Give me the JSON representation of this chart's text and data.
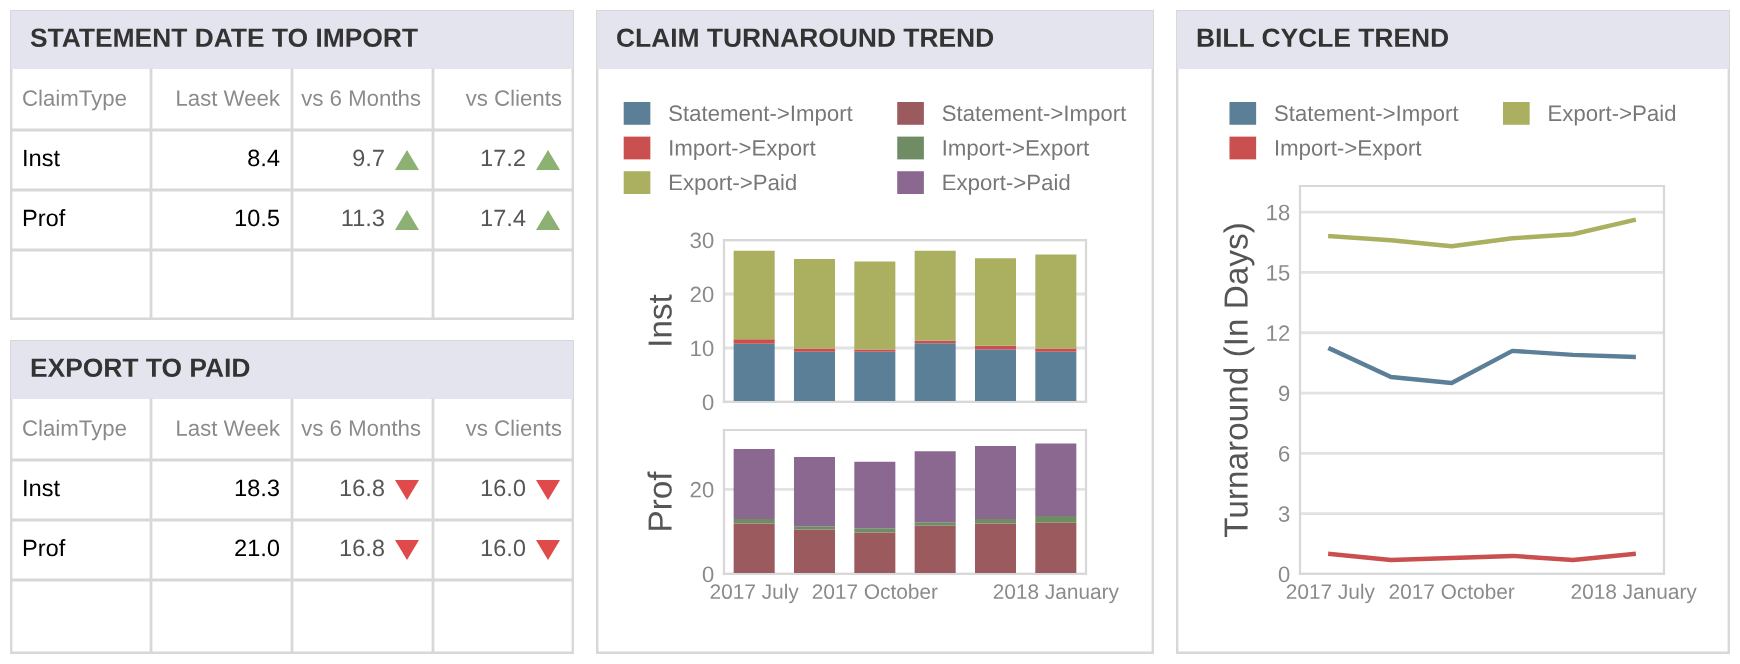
{
  "chart_data": [
    {
      "type": "other",
      "title": "STATEMENT DATE TO IMPORT",
      "categories": [
        "ClaimType",
        "Last Week",
        "vs 6 Months",
        "vs Clients"
      ],
      "annotations": [
        "Inst",
        "8.4",
        "9.7",
        "17.2",
        "Prof",
        "10.5",
        "11.3",
        "17.4"
      ],
      "colors": [
        "#8db173",
        "#8db173",
        "#8db173",
        "#8db173"
      ]
    },
    {
      "type": "other",
      "title": "EXPORT TO PAID",
      "categories": [
        "ClaimType",
        "Last Week",
        "vs 6 Months",
        "vs Clients"
      ],
      "annotations": [
        "Inst",
        "18.3",
        "16.8",
        "16.0",
        "Prof",
        "21.0",
        "16.8",
        "16.0"
      ],
      "colors": [
        "#e04a4a",
        "#e04a4a",
        "#e04a4a",
        "#e04a4a"
      ]
    },
    {
      "type": "bar",
      "title": "CLAIM TURNAROUND TREND",
      "ylabel": "Inst",
      "stacked": true,
      "categories": [
        null,
        null,
        null,
        null,
        null,
        null
      ],
      "ylim": [
        0,
        30
      ],
      "yticks": [
        0,
        10,
        20,
        30
      ],
      "grid": "y",
      "legend": "top",
      "series": [
        {
          "name": "Statement->Import",
          "color": "#5b7f97",
          "values": [
            10.8,
            9.3,
            9.3,
            10.9,
            9.7,
            9.3
          ]
        },
        {
          "name": "Import->Export",
          "color": "#c9504f",
          "values": [
            0.8,
            0.6,
            0.4,
            0.5,
            0.7,
            0.6
          ]
        },
        {
          "name": "Export->Paid",
          "color": "#aab060",
          "values": [
            16.4,
            16.6,
            16.3,
            16.6,
            16.2,
            17.4
          ]
        }
      ]
    },
    {
      "type": "bar",
      "ylabel": "Prof",
      "stacked": true,
      "categories": [
        "2017 July",
        null,
        "2017 October",
        null,
        null,
        "2018 January"
      ],
      "ylim": [
        0,
        34
      ],
      "yticks": [
        0,
        20
      ],
      "grid": "y",
      "legend": "top",
      "series": [
        {
          "name": "Statement->Import",
          "color": "#9b5a5d",
          "values": [
            11.9,
            10.5,
            9.8,
            11.4,
            11.9,
            12.1
          ]
        },
        {
          "name": "Import->Export",
          "color": "#6f8c64",
          "values": [
            1.1,
            0.8,
            1.0,
            0.8,
            1.1,
            1.6
          ]
        },
        {
          "name": "Export->Paid",
          "color": "#8a6890",
          "values": [
            16.5,
            16.3,
            15.7,
            16.8,
            17.2,
            17.1
          ]
        }
      ]
    },
    {
      "type": "line",
      "title": "BILL CYCLE TREND",
      "ylabel": "Turnaround (In Days)",
      "categories": [
        "2017 July",
        null,
        "2017 October",
        null,
        null,
        "2018 January"
      ],
      "ylim": [
        0,
        19.3
      ],
      "yticks": [
        0,
        3,
        6,
        9,
        12,
        15,
        18
      ],
      "grid": "y",
      "legend": "top",
      "series": [
        {
          "name": "Statement->Import",
          "color": "#5b7f97",
          "values": [
            11.2,
            9.8,
            9.5,
            11.1,
            10.9,
            10.8
          ]
        },
        {
          "name": "Import->Export",
          "color": "#c9504f",
          "values": [
            1.0,
            0.7,
            0.8,
            0.9,
            0.7,
            1.0
          ]
        },
        {
          "name": "Export->Paid",
          "color": "#aab060",
          "values": [
            16.8,
            16.6,
            16.3,
            16.7,
            16.9,
            17.6
          ]
        }
      ]
    }
  ]
}
